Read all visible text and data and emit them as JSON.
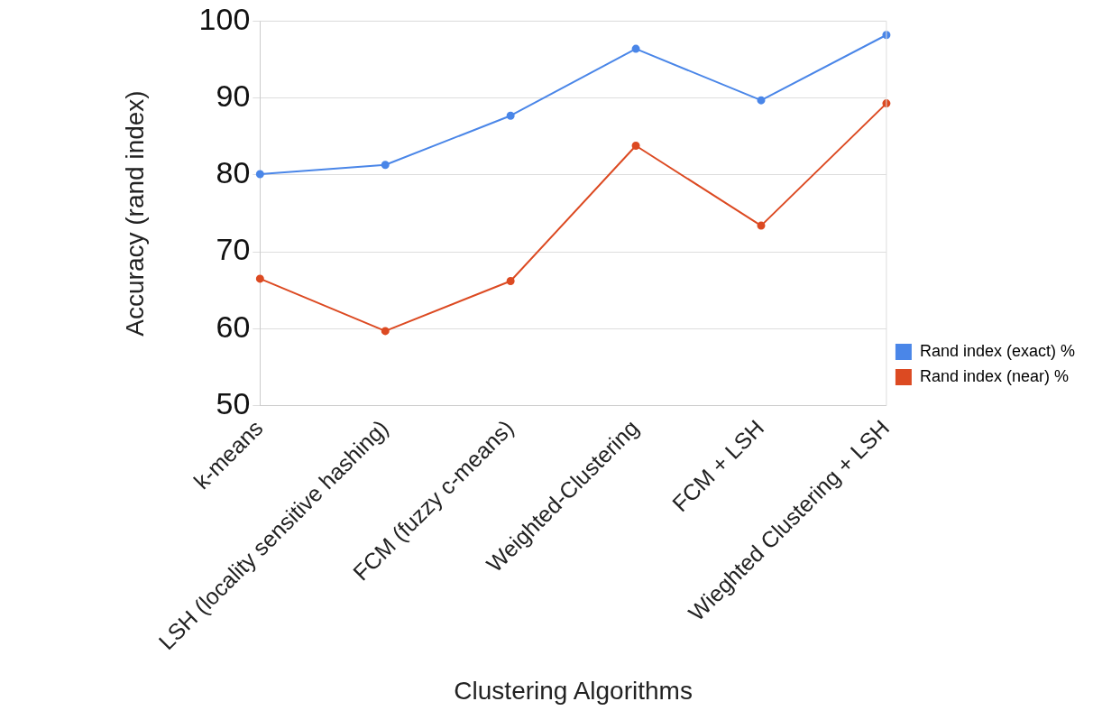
{
  "chart_data": {
    "type": "line",
    "xlabel": "Clustering Algorithms",
    "ylabel": "Accuracy (rand index)",
    "categories": [
      "k-means",
      "LSH (locality sensitive hashing)",
      "FCM (fuzzy c-means)",
      "Weighted-Clustering",
      "FCM + LSH",
      "Wieghted Clustering + LSH"
    ],
    "series": [
      {
        "name": "Rand index (exact) %",
        "color": "#4a86e8",
        "values": [
          80.1,
          81.3,
          87.7,
          96.4,
          89.7,
          98.2
        ]
      },
      {
        "name": "Rand index (near) %",
        "color": "#dc4a22",
        "values": [
          66.5,
          59.7,
          66.2,
          83.8,
          73.4,
          89.3
        ]
      }
    ],
    "ylim": [
      50,
      100
    ],
    "yticks": [
      50,
      60,
      70,
      80,
      90,
      100
    ],
    "grid": "y",
    "legend": "right",
    "marker": "circle",
    "line_style": "solid"
  }
}
